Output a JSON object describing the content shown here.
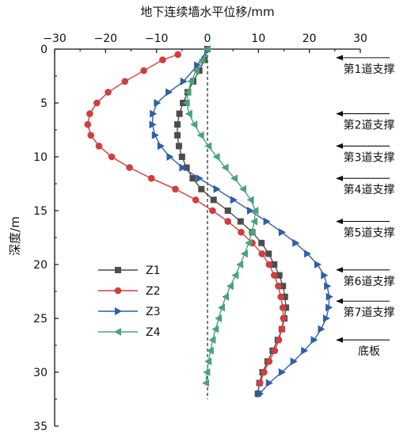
{
  "chart_data": {
    "type": "line",
    "title": "",
    "xlabel": "地下连续墙水平位移/mm",
    "ylabel": "深度/m",
    "xlim": [
      -30,
      30
    ],
    "ylim": [
      0,
      35
    ],
    "x_ticks": [
      -30,
      -20,
      -10,
      0,
      10,
      20,
      30
    ],
    "y_ticks": [
      0,
      5,
      10,
      15,
      20,
      25,
      30,
      35
    ],
    "x_tick_labels": [
      "−30",
      "−20",
      "−10",
      "0",
      "10",
      "20",
      "30"
    ],
    "y_tick_labels": [
      "0",
      "5",
      "10",
      "15",
      "20",
      "25",
      "30",
      "35"
    ],
    "x_axis_position": "top",
    "y_axis_reversed": true,
    "grid": false,
    "zero_line": "dashed",
    "legend": "left-center",
    "series": [
      {
        "name": "Z1",
        "color": "#4d4d4d",
        "marker": "square",
        "points": [
          [
            0,
            0
          ],
          [
            -0.6,
            1
          ],
          [
            -1.6,
            2
          ],
          [
            -2.8,
            3
          ],
          [
            -3.9,
            4
          ],
          [
            -4.8,
            5
          ],
          [
            -5.5,
            6
          ],
          [
            -5.9,
            7
          ],
          [
            -5.9,
            8
          ],
          [
            -5.6,
            9
          ],
          [
            -5.0,
            10
          ],
          [
            -4.1,
            11
          ],
          [
            -2.9,
            12
          ],
          [
            -1.2,
            13
          ],
          [
            1.2,
            14
          ],
          [
            4.0,
            15
          ],
          [
            6.5,
            16
          ],
          [
            8.8,
            17
          ],
          [
            10.6,
            18
          ],
          [
            12.0,
            19
          ],
          [
            13.1,
            20
          ],
          [
            14.1,
            21
          ],
          [
            14.8,
            22
          ],
          [
            15.2,
            23
          ],
          [
            15.4,
            24
          ],
          [
            15.1,
            25
          ],
          [
            14.6,
            26
          ],
          [
            13.8,
            27
          ],
          [
            12.8,
            28
          ],
          [
            11.8,
            29
          ],
          [
            10.8,
            30
          ],
          [
            10.2,
            31
          ],
          [
            9.9,
            32
          ]
        ]
      },
      {
        "name": "Z2",
        "color": "#d03e3e",
        "marker": "circle",
        "points": [
          [
            -5.8,
            0.5
          ],
          [
            -8.8,
            1
          ],
          [
            -12.5,
            2
          ],
          [
            -16.2,
            3
          ],
          [
            -19.5,
            4
          ],
          [
            -21.7,
            5
          ],
          [
            -23.1,
            6
          ],
          [
            -23.5,
            7
          ],
          [
            -22.9,
            8
          ],
          [
            -21.3,
            9
          ],
          [
            -18.8,
            10
          ],
          [
            -15.3,
            11
          ],
          [
            -11.0,
            12
          ],
          [
            -6.3,
            13
          ],
          [
            -2.3,
            14
          ],
          [
            1.0,
            15
          ],
          [
            4.0,
            16
          ],
          [
            6.6,
            17
          ],
          [
            8.8,
            18
          ],
          [
            10.7,
            19
          ],
          [
            12.1,
            20
          ],
          [
            13.1,
            21
          ],
          [
            13.9,
            22
          ],
          [
            14.4,
            23
          ],
          [
            14.8,
            24
          ],
          [
            14.9,
            25
          ],
          [
            14.6,
            26
          ],
          [
            14.0,
            27
          ],
          [
            13.2,
            28
          ],
          [
            12.1,
            29
          ],
          [
            11.1,
            30
          ],
          [
            10.3,
            31
          ]
        ]
      },
      {
        "name": "Z3",
        "color": "#2f5fa8",
        "marker": "triangle-right",
        "points": [
          [
            0,
            0
          ],
          [
            -2.0,
            1.5
          ],
          [
            -4.7,
            3
          ],
          [
            -7.6,
            4
          ],
          [
            -9.9,
            5
          ],
          [
            -10.7,
            6
          ],
          [
            -10.8,
            7
          ],
          [
            -10.3,
            8
          ],
          [
            -9.2,
            9
          ],
          [
            -7.4,
            10
          ],
          [
            -4.9,
            11
          ],
          [
            -1.6,
            12
          ],
          [
            1.8,
            13
          ],
          [
            5.1,
            14
          ],
          [
            8.4,
            15
          ],
          [
            11.6,
            16
          ],
          [
            14.6,
            17
          ],
          [
            17.3,
            18
          ],
          [
            19.6,
            19
          ],
          [
            21.6,
            20
          ],
          [
            22.9,
            21
          ],
          [
            23.5,
            22
          ],
          [
            23.9,
            23
          ],
          [
            23.8,
            24
          ],
          [
            23.3,
            25
          ],
          [
            22.3,
            26
          ],
          [
            20.9,
            27
          ],
          [
            19.0,
            28
          ],
          [
            16.9,
            29
          ],
          [
            14.6,
            30
          ],
          [
            12.1,
            31
          ],
          [
            10.3,
            32
          ]
        ]
      },
      {
        "name": "Z4",
        "color": "#4aa37a",
        "marker": "triangle-left",
        "points": [
          [
            0,
            0
          ],
          [
            -1.0,
            1
          ],
          [
            -2.2,
            2
          ],
          [
            -3.2,
            3
          ],
          [
            -3.8,
            4
          ],
          [
            -4.1,
            5
          ],
          [
            -3.6,
            6
          ],
          [
            -2.6,
            7
          ],
          [
            -1.3,
            8
          ],
          [
            0.2,
            9
          ],
          [
            1.8,
            10
          ],
          [
            3.5,
            11
          ],
          [
            5.3,
            12
          ],
          [
            7.0,
            13
          ],
          [
            8.5,
            14
          ],
          [
            9.4,
            15
          ],
          [
            9.2,
            16
          ],
          [
            8.7,
            17
          ],
          [
            8.1,
            18
          ],
          [
            7.3,
            19
          ],
          [
            6.4,
            20
          ],
          [
            5.5,
            21
          ],
          [
            4.5,
            22
          ],
          [
            3.6,
            23
          ],
          [
            2.8,
            24
          ],
          [
            2.2,
            25
          ],
          [
            1.6,
            26
          ],
          [
            1.0,
            27
          ],
          [
            0.6,
            28
          ],
          [
            0.2,
            29
          ],
          [
            -0.1,
            30
          ],
          [
            -0.3,
            31
          ]
        ]
      }
    ],
    "annotations": [
      {
        "label": "第1道支撑",
        "depth": 0.8,
        "arrow": true
      },
      {
        "label": "第2道支撑",
        "depth": 6.0,
        "arrow": true
      },
      {
        "label": "第3道支撑",
        "depth": 9.0,
        "arrow": true
      },
      {
        "label": "第4道支撑",
        "depth": 12.0,
        "arrow": true
      },
      {
        "label": "第5道支撑",
        "depth": 16.0,
        "arrow": true
      },
      {
        "label": "第6道支撑",
        "depth": 20.5,
        "arrow": true
      },
      {
        "label": "第7道支撑",
        "depth": 23.4,
        "arrow": true
      },
      {
        "label": "底板",
        "depth": 27.0,
        "arrow": true
      }
    ]
  }
}
